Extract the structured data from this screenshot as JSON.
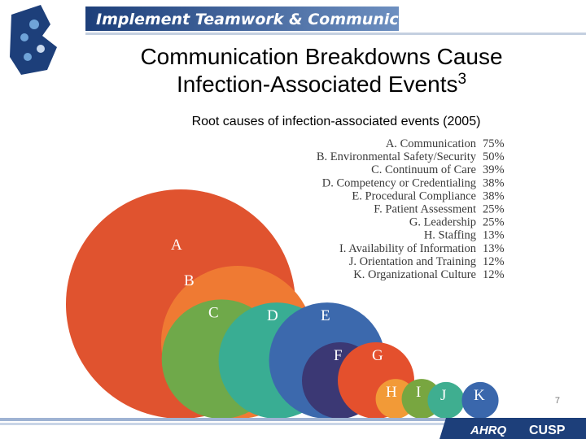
{
  "header": {
    "banner": "Implement Teamwork & Communication"
  },
  "title": "Communication Breakdowns Cause Infection-Associated Events",
  "title_ref": "3",
  "chart_data": {
    "type": "bubble",
    "title": "Root causes of infection-associated events (2005)",
    "categories": [
      "A",
      "B",
      "C",
      "D",
      "E",
      "F",
      "G",
      "H",
      "I",
      "J",
      "K"
    ],
    "labels": [
      "Communication",
      "Environmental Safety/Security",
      "Continuum of Care",
      "Competency or Credentialing",
      "Procedural Compliance",
      "Patient Assessment",
      "Leadership",
      "Staffing",
      "Availability of Information",
      "Orientation and Training",
      "Organizational Culture"
    ],
    "values": [
      75,
      50,
      39,
      38,
      38,
      25,
      25,
      13,
      13,
      12,
      12
    ],
    "value_labels": [
      "75%",
      "50%",
      "39%",
      "38%",
      "38%",
      "25%",
      "25%",
      "13%",
      "13%",
      "12%",
      "12%"
    ],
    "colors": [
      "#e0532f",
      "#ef7a33",
      "#6fa94a",
      "#39ad93",
      "#3c69ad",
      "#3b3874",
      "#e4502d",
      "#f29a37",
      "#78a640",
      "#3fae90",
      "#3a67ac"
    ]
  },
  "page_number": "7",
  "footer": {
    "logo": "AHRQ",
    "program": "CUSP"
  }
}
